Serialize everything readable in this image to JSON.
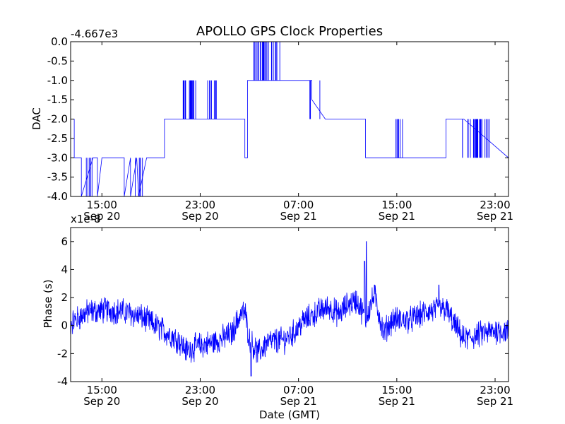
{
  "chart_data": [
    {
      "type": "line",
      "title": "APOLLO GPS Clock Properties",
      "ylabel": "DAC",
      "xlabel": "",
      "y_offset_label": "-4.667e3",
      "ylim": [
        -4.0,
        0.0
      ],
      "xlim_hours": [
        0,
        49
      ],
      "yticks": [
        {
          "v": 0.0,
          "label": "0.0"
        },
        {
          "v": -0.5,
          "label": "-0.5"
        },
        {
          "v": -1.0,
          "label": "-1.0"
        },
        {
          "v": -1.5,
          "label": "-1.5"
        },
        {
          "v": -2.0,
          "label": "-2.0"
        },
        {
          "v": -2.5,
          "label": "-2.5"
        },
        {
          "v": -3.0,
          "label": "-3.0"
        },
        {
          "v": -3.5,
          "label": "-3.5"
        },
        {
          "v": -4.0,
          "label": "-4.0"
        }
      ],
      "xticks": [
        {
          "h": 3.5,
          "time": "15:00",
          "date": "Sep 20"
        },
        {
          "h": 14.5,
          "time": "23:00",
          "date": "Sep 20"
        },
        {
          "h": 25.5,
          "time": "07:00",
          "date": "Sep 21"
        },
        {
          "h": 36.5,
          "time": "15:00",
          "date": "Sep 21"
        },
        {
          "h": 47.5,
          "time": "23:00",
          "date": "Sep 21"
        }
      ],
      "series": [
        {
          "name": "DAC",
          "x": [
            0.0,
            0.4,
            0.4,
            1.2,
            1.2,
            2.5,
            2.6,
            3.0,
            3.0,
            3.5,
            3.5,
            4.1,
            4.3,
            6.0,
            6.0,
            6.7,
            6.7,
            7.4,
            7.6,
            8.5,
            8.5,
            10.5,
            10.5,
            14.0,
            14.0,
            16.0,
            16.0,
            19.5,
            19.5,
            19.8,
            19.8,
            25.2,
            25.2,
            27.0,
            27.0,
            28.5,
            28.5,
            33.0,
            33.0,
            33.8,
            33.8,
            35.0,
            35.0,
            38.0,
            38.0,
            42.0,
            42.0,
            44.0,
            44.0,
            49.0
          ],
          "y": [
            -2.0,
            -2.0,
            -3.0,
            -3.0,
            -4.0,
            -3.0,
            -3.0,
            -3.0,
            -4.0,
            -3.0,
            -3.0,
            -3.0,
            -3.0,
            -3.0,
            -4.0,
            -3.0,
            -4.0,
            -3.0,
            -4.0,
            -3.0,
            -3.0,
            -3.0,
            -2.0,
            -2.0,
            -2.0,
            -2.0,
            -2.0,
            -2.0,
            -3.0,
            -3.0,
            -1.0,
            -1.0,
            -1.0,
            -1.0,
            -1.5,
            -2.0,
            -2.0,
            -2.0,
            -3.0,
            -3.0,
            -3.0,
            -3.0,
            -3.0,
            -3.0,
            -3.0,
            -3.0,
            -2.0,
            -2.0,
            -2.0,
            -3.0
          ],
          "sparse_note": "approximate coarse trace; dense rendering reconstructed by script"
        }
      ]
    },
    {
      "type": "line",
      "title": "",
      "ylabel": "Phase (s)",
      "xlabel": "Date (GMT)",
      "y_offset_label": "x1e-8",
      "ylim": [
        -4,
        7
      ],
      "xlim_hours": [
        0,
        49
      ],
      "yticks": [
        {
          "v": 6,
          "label": "6"
        },
        {
          "v": 4,
          "label": "4"
        },
        {
          "v": 2,
          "label": "2"
        },
        {
          "v": 0,
          "label": "0"
        },
        {
          "v": -2,
          "label": "-2"
        },
        {
          "v": -4,
          "label": "-4"
        }
      ],
      "xticks": [
        {
          "h": 3.5,
          "time": "15:00",
          "date": "Sep 20"
        },
        {
          "h": 14.5,
          "time": "23:00",
          "date": "Sep 20"
        },
        {
          "h": 25.5,
          "time": "07:00",
          "date": "Sep 21"
        },
        {
          "h": 36.5,
          "time": "15:00",
          "date": "Sep 21"
        },
        {
          "h": 47.5,
          "time": "23:00",
          "date": "Sep 21"
        }
      ],
      "series": [
        {
          "name": "Phase",
          "x": [
            0,
            2,
            4,
            6,
            8,
            10,
            12,
            13,
            14,
            16,
            18,
            19,
            19.5,
            20,
            21,
            22,
            24,
            25,
            26,
            28,
            29,
            30,
            31,
            32,
            33,
            34,
            35,
            36,
            38,
            40,
            42,
            43,
            44,
            46,
            48,
            49
          ],
          "y": [
            0.2,
            1.0,
            1.1,
            1.0,
            0.6,
            -0.2,
            -1.0,
            -1.8,
            -1.5,
            -1.2,
            -0.6,
            0.8,
            1.0,
            -1.0,
            -2.0,
            -1.2,
            -1.0,
            -0.5,
            0.3,
            1.1,
            1.3,
            0.8,
            1.5,
            1.8,
            0.5,
            2.2,
            -0.5,
            0.4,
            0.4,
            1.0,
            1.2,
            0.0,
            -1.0,
            -0.6,
            -0.3,
            -0.5
          ],
          "spikes": [
            {
              "h": 33.1,
              "v": 6.0
            },
            {
              "h": 32.9,
              "v": 4.6
            },
            {
              "h": 34.0,
              "v": 2.9
            },
            {
              "h": 41.2,
              "v": 2.9
            },
            {
              "h": 20.2,
              "v": -3.6
            }
          ],
          "sparse_note": "approximate smoothed trend; dense noise reconstructed by script"
        }
      ]
    }
  ]
}
